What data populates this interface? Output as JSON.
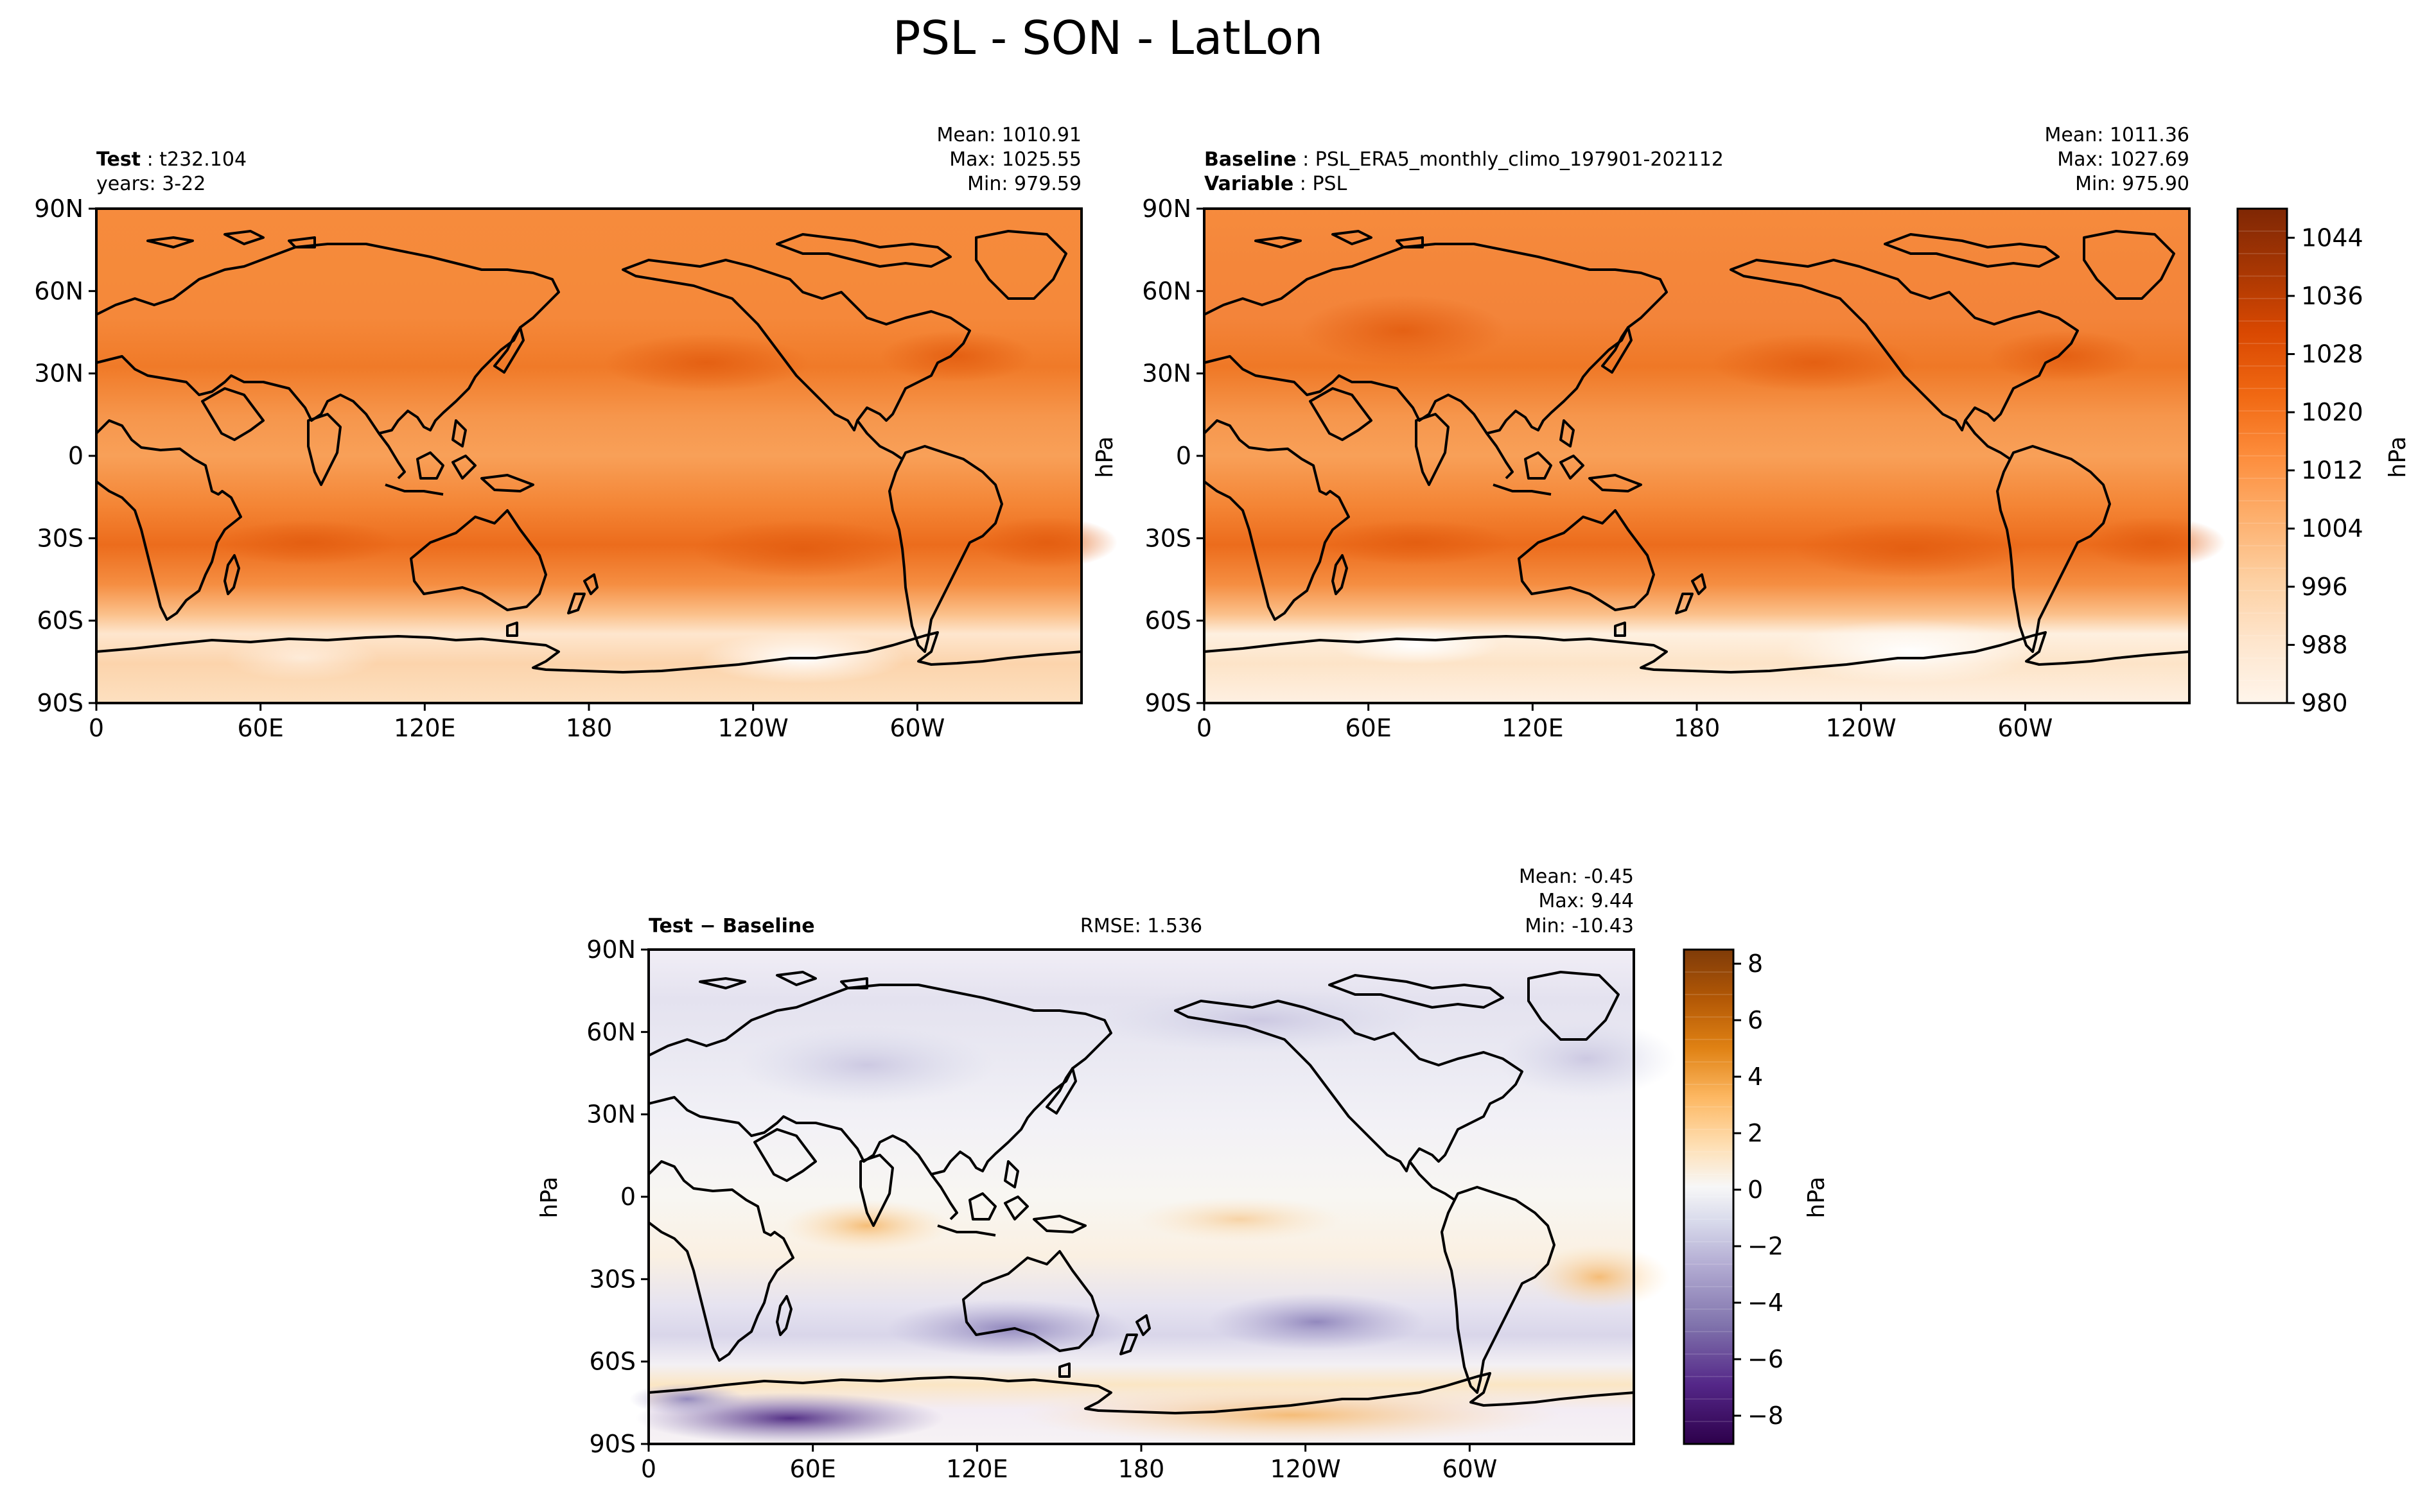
{
  "title": "PSL - SON - LatLon",
  "lat_ticks": [
    "90N",
    "60N",
    "30N",
    "0",
    "30S",
    "60S",
    "90S"
  ],
  "lon_ticks": [
    "0",
    "60E",
    "120E",
    "180",
    "120W",
    "60W"
  ],
  "colors": {
    "oranges": [
      "#fff5eb",
      "#fee6ce",
      "#fdd0a2",
      "#fdae6b",
      "#fd8d3c",
      "#f16913",
      "#d94801",
      "#a63603",
      "#7f2704"
    ],
    "puor": [
      "#2d004b",
      "#542788",
      "#8073ac",
      "#b2abd2",
      "#d8daeb",
      "#f7f7f7",
      "#fee0b6",
      "#fdb863",
      "#e08214",
      "#b35806",
      "#7f3b08"
    ],
    "coast": "#000000"
  },
  "panels": {
    "test": {
      "label_bold": "Test",
      "label_value": "t232.104",
      "sub": "years: 3-22",
      "mean": "Mean: 1010.91",
      "max": "Max: 1025.55",
      "min": "Min: 979.59"
    },
    "baseline": {
      "label_bold": "Baseline",
      "label_value": "PSL_ERA5_monthly_climo_197901-202112",
      "var_bold": "Variable",
      "var_value": "PSL",
      "mean": "Mean: 1011.36",
      "max": "Max: 1027.69",
      "min": "Min: 975.90"
    },
    "diff": {
      "label": "Test − Baseline",
      "rmse": "RMSE: 1.536",
      "mean": "Mean: -0.45",
      "max": "Max:  9.44",
      "min": "Min: -10.43"
    }
  },
  "colorbars": {
    "top": {
      "unit": "hPa",
      "ticks": [
        "1044",
        "1036",
        "1028",
        "1020",
        "1012",
        "1004",
        "996",
        "988",
        "980"
      ],
      "range": [
        980,
        1048
      ]
    },
    "diff": {
      "unit": "hPa",
      "ticks": [
        "8",
        "6",
        "4",
        "2",
        "0",
        "−2",
        "−4",
        "−6",
        "−8"
      ],
      "range": [
        -9,
        8.5
      ]
    }
  },
  "ylabel_unit": "hPa",
  "chart_data": [
    {
      "type": "heatmap",
      "title": "Test : t232.104",
      "field": "PSL",
      "unit": "hPa",
      "season": "SON",
      "years": "3-22",
      "stats": {
        "mean": 1010.91,
        "max": 1025.55,
        "min": 979.59
      },
      "xlim": [
        0,
        360
      ],
      "ylim": [
        -90,
        90
      ],
      "zonal_mean_profile": {
        "lat": [
          90,
          75,
          60,
          45,
          30,
          15,
          0,
          -15,
          -30,
          -45,
          -55,
          -65,
          -75,
          -90
        ],
        "value": [
          1013,
          1011,
          1010,
          1014,
          1018,
          1012,
          1010,
          1013,
          1020,
          1014,
          1000,
          985,
          992,
          994
        ]
      }
    },
    {
      "type": "heatmap",
      "title": "Baseline : PSL_ERA5_monthly_climo_197901-202112",
      "field": "PSL",
      "unit": "hPa",
      "season": "SON",
      "stats": {
        "mean": 1011.36,
        "max": 1027.69,
        "min": 975.9
      },
      "xlim": [
        0,
        360
      ],
      "ylim": [
        -90,
        90
      ],
      "zonal_mean_profile": {
        "lat": [
          90,
          75,
          60,
          45,
          30,
          15,
          0,
          -15,
          -30,
          -45,
          -55,
          -65,
          -75,
          -90
        ],
        "value": [
          1014,
          1012,
          1011,
          1015,
          1018,
          1012,
          1010,
          1013,
          1020,
          1015,
          1001,
          984,
          988,
          992
        ]
      }
    },
    {
      "type": "heatmap",
      "title": "Test − Baseline",
      "field": "PSL difference",
      "unit": "hPa",
      "stats": {
        "mean": -0.45,
        "max": 9.44,
        "min": -10.43,
        "rmse": 1.536
      },
      "xlim": [
        0,
        360
      ],
      "ylim": [
        -90,
        90
      ],
      "zonal_mean_profile": {
        "lat": [
          90,
          75,
          60,
          45,
          30,
          15,
          0,
          -15,
          -30,
          -45,
          -55,
          -65,
          -75,
          -90
        ],
        "value": [
          0.5,
          -1,
          -1.5,
          -1,
          -0.5,
          -0.5,
          0,
          0.5,
          0.5,
          -2,
          -1,
          2,
          1,
          0
        ]
      }
    }
  ]
}
